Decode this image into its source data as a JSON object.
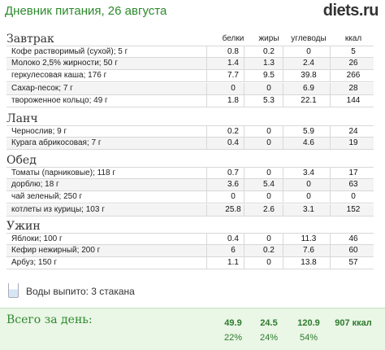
{
  "header": {
    "title": "Дневник питания, 26 августа",
    "logo": "diets.ru"
  },
  "columns": {
    "protein": "белки",
    "fat": "жиры",
    "carbs": "углеводы",
    "kcal": "ккал"
  },
  "meals": [
    {
      "title": "Завтрак",
      "items": [
        {
          "name": "Кофе растворимый (сухой); 5 г",
          "protein": "0.8",
          "fat": "0.2",
          "carbs": "0",
          "kcal": "5"
        },
        {
          "name": "Молоко 2,5% жирности; 50 г",
          "protein": "1.4",
          "fat": "1.3",
          "carbs": "2.4",
          "kcal": "26"
        },
        {
          "name": "геркулесовая каша; 176 г",
          "protein": "7.7",
          "fat": "9.5",
          "carbs": "39.8",
          "kcal": "266"
        },
        {
          "name": "Сахар-песок; 7 г",
          "protein": "0",
          "fat": "0",
          "carbs": "6.9",
          "kcal": "28"
        },
        {
          "name": "твороженное кольцо; 49 г",
          "protein": "1.8",
          "fat": "5.3",
          "carbs": "22.1",
          "kcal": "144"
        }
      ]
    },
    {
      "title": "Ланч",
      "items": [
        {
          "name": "Чернослив; 9 г",
          "protein": "0.2",
          "fat": "0",
          "carbs": "5.9",
          "kcal": "24"
        },
        {
          "name": "Курага абрикосовая; 7 г",
          "protein": "0.4",
          "fat": "0",
          "carbs": "4.6",
          "kcal": "19"
        }
      ]
    },
    {
      "title": "Обед",
      "items": [
        {
          "name": "Томаты (парниковые); 118 г",
          "protein": "0.7",
          "fat": "0",
          "carbs": "3.4",
          "kcal": "17"
        },
        {
          "name": "дорблю; 18 г",
          "protein": "3.6",
          "fat": "5.4",
          "carbs": "0",
          "kcal": "63"
        },
        {
          "name": "чай зеленый; 250 г",
          "protein": "0",
          "fat": "0",
          "carbs": "0",
          "kcal": "0"
        },
        {
          "name": "котлеты из курицы; 103 г",
          "protein": "25.8",
          "fat": "2.6",
          "carbs": "3.1",
          "kcal": "152"
        }
      ]
    },
    {
      "title": "Ужин",
      "items": [
        {
          "name": "Яблоки; 100 г",
          "protein": "0.4",
          "fat": "0",
          "carbs": "11.3",
          "kcal": "46"
        },
        {
          "name": "Кефир нежирный; 200 г",
          "protein": "6",
          "fat": "0.2",
          "carbs": "7.6",
          "kcal": "60"
        },
        {
          "name": "Арбуз; 150 г",
          "protein": "1.1",
          "fat": "0",
          "carbs": "13.8",
          "kcal": "57"
        }
      ]
    }
  ],
  "water": {
    "text": "Воды выпито: 3 стакана"
  },
  "total": {
    "label": "Всего за день:",
    "protein": "49.9",
    "fat": "24.5",
    "carbs": "120.9",
    "kcal": "907 ккал",
    "protein_pct": "22%",
    "fat_pct": "24%",
    "carbs_pct": "54%"
  },
  "colors": {
    "accent": "#2d8a2d",
    "total_bg": "#eaf6e6"
  }
}
